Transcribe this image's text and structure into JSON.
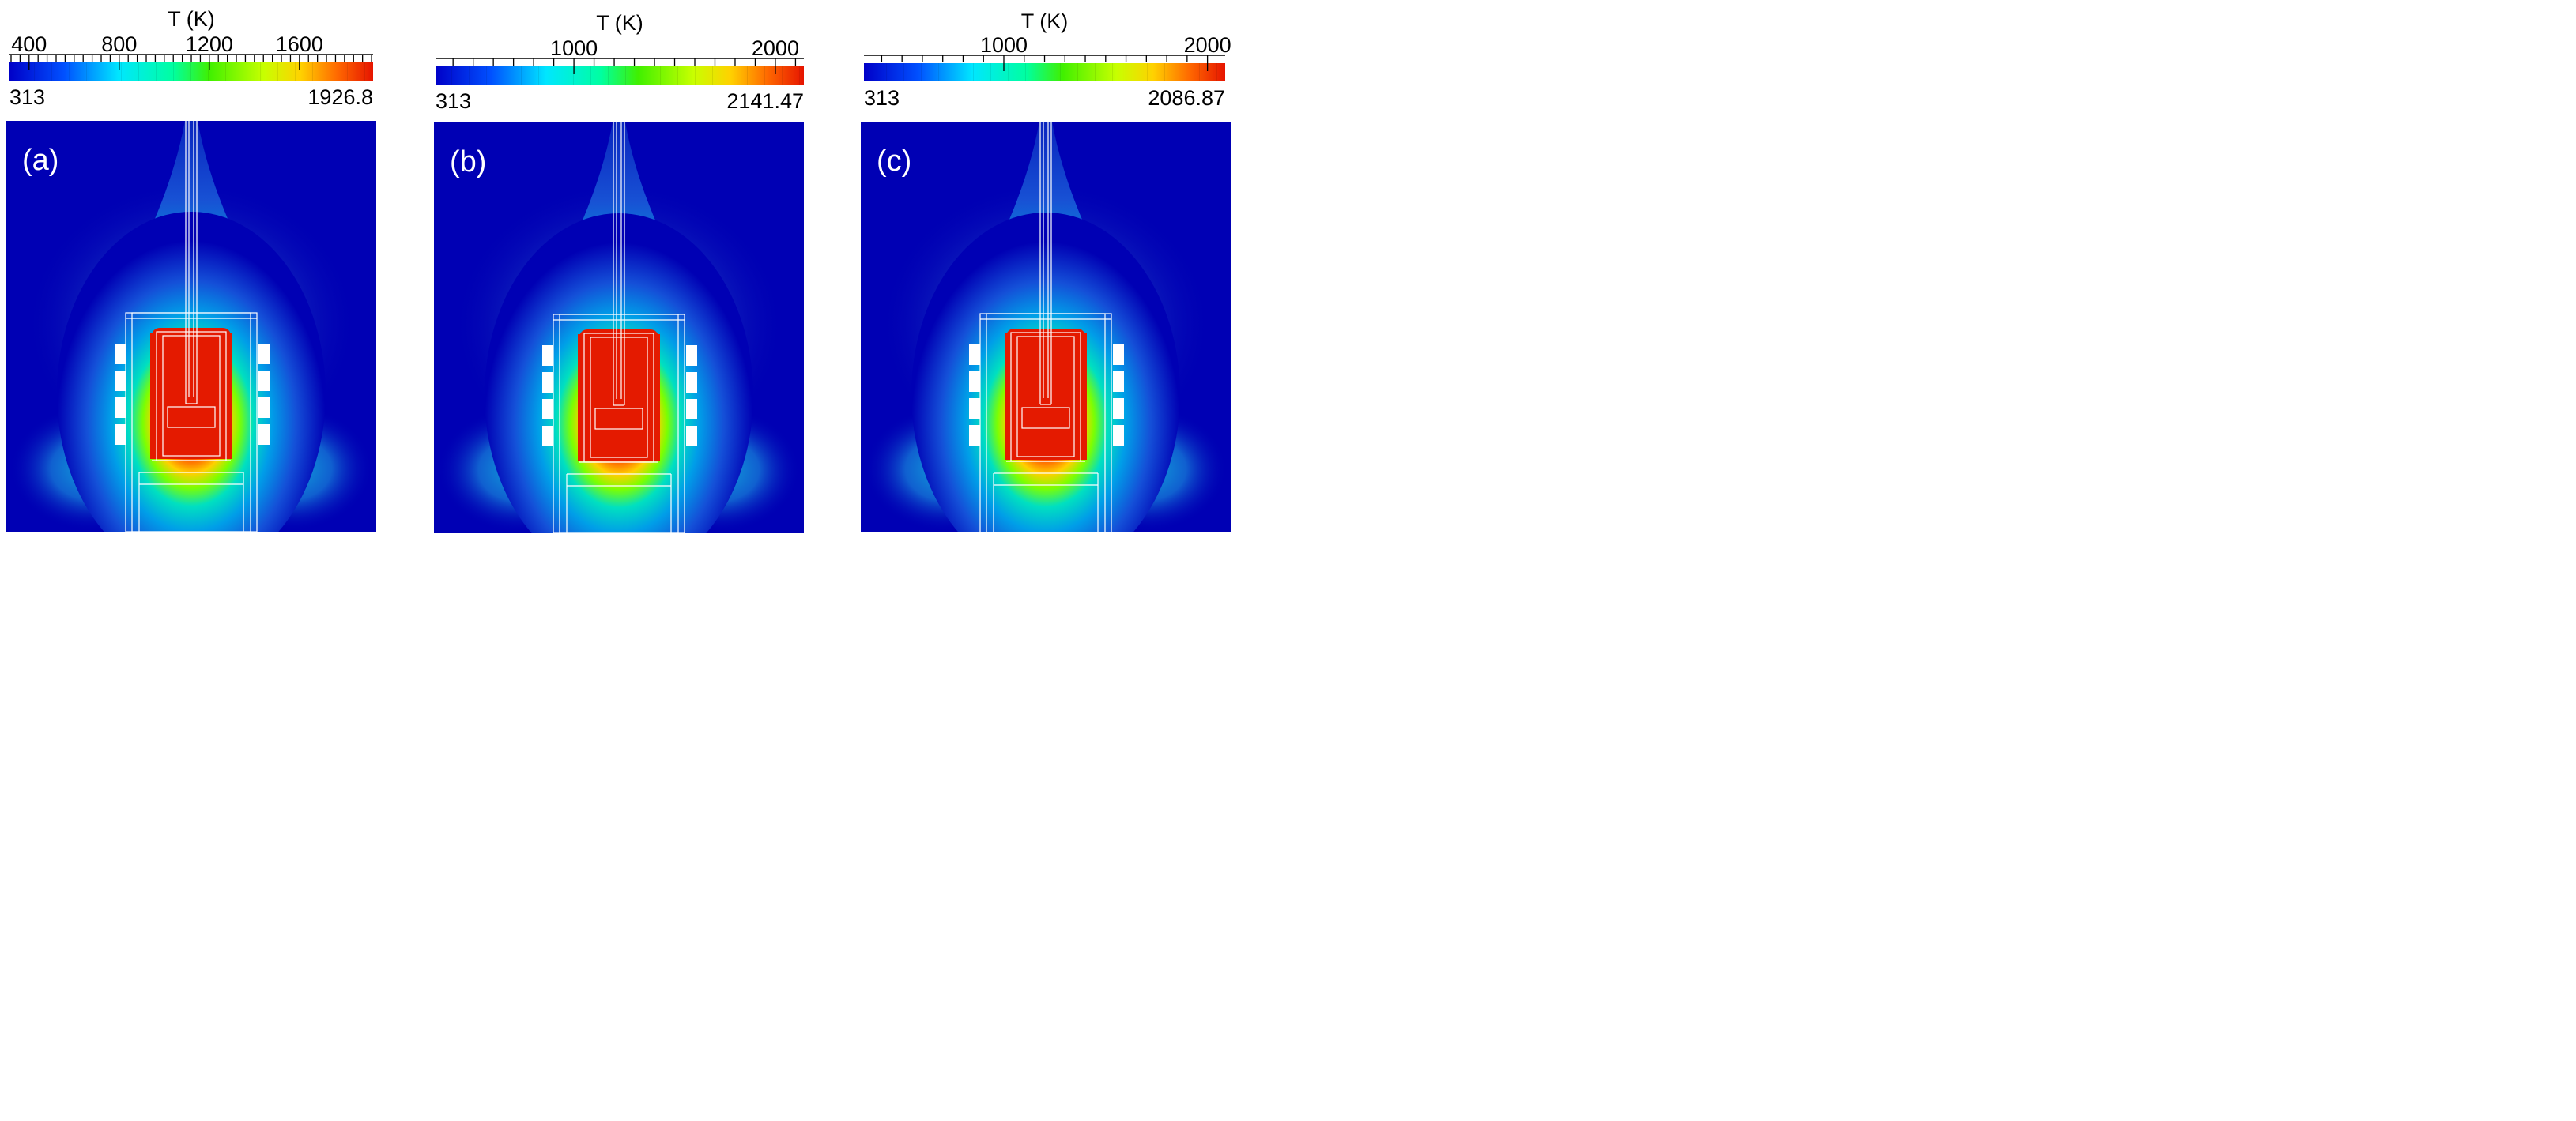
{
  "panels": [
    {
      "label": "(a)",
      "colorbar": {
        "title": "T (K)",
        "min": 313,
        "max": 1926.8,
        "min_label": "313",
        "max_label": "1926.8",
        "tick_labels": [
          "400",
          "800",
          "1200",
          "1600"
        ],
        "tick_values": [
          400,
          800,
          1200,
          1600
        ],
        "minor_step": 40
      }
    },
    {
      "label": "(b)",
      "colorbar": {
        "title": "T (K)",
        "min": 313,
        "max": 2141.47,
        "min_label": "313",
        "max_label": "2141.47",
        "tick_labels": [
          "1000",
          "2000"
        ],
        "tick_values": [
          1000,
          2000
        ],
        "minor_step": 100
      }
    },
    {
      "label": "(c)",
      "colorbar": {
        "title": "T (K)",
        "min": 313,
        "max": 2086.87,
        "min_label": "313",
        "max_label": "2086.87",
        "tick_labels": [
          "1000",
          "2000"
        ],
        "tick_values": [
          1000,
          2000
        ],
        "minor_step": 100
      }
    }
  ],
  "colors": {
    "background": "#0000b4",
    "hot": "#e41a00",
    "outline": "#ffffff",
    "coil": "#ffffff"
  }
}
